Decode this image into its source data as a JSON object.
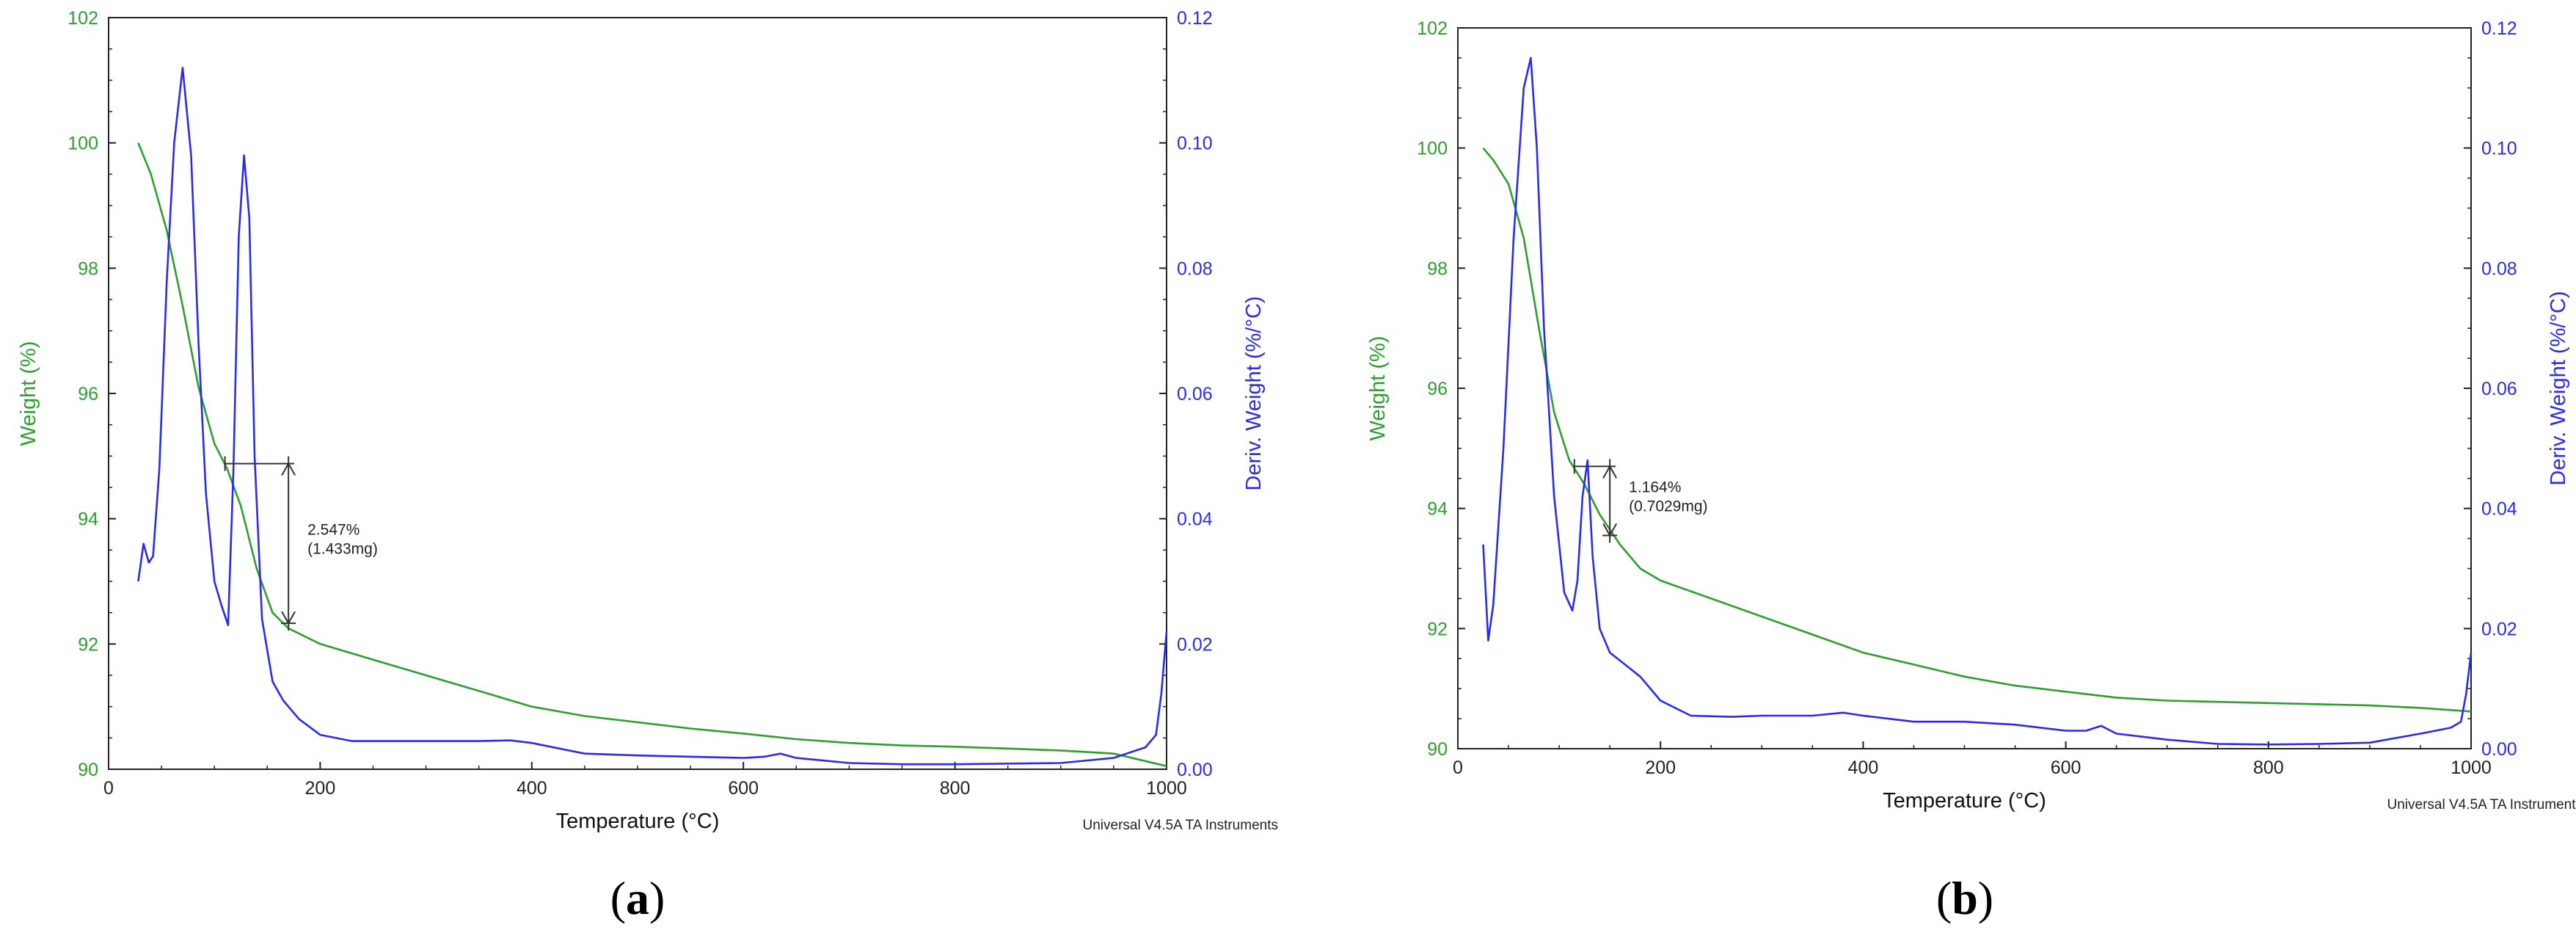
{
  "colors": {
    "weight": "#2e9e2e",
    "deriv": "#2a2af0",
    "axis": "#222222",
    "annotation": "#333333"
  },
  "chart_data": [
    {
      "type": "line",
      "panel_label": "a",
      "xlabel": "Temperature (°C)",
      "ylabel_left": "Weight (%)",
      "ylabel_right": "Deriv. Weight (%/°C)",
      "xlim": [
        0,
        1000
      ],
      "ylim_left": [
        90,
        102
      ],
      "ylim_right": [
        0,
        0.12
      ],
      "x_ticks": [
        "0",
        "200",
        "400",
        "600",
        "800",
        "1000"
      ],
      "y_left_ticks": [
        "90",
        "92",
        "94",
        "96",
        "98",
        "100",
        "102"
      ],
      "y_right_ticks": [
        "0.00",
        "0.02",
        "0.04",
        "0.06",
        "0.08",
        "0.10",
        "0.12"
      ],
      "grid": false,
      "credit": "Universal V4.5A TA Instruments",
      "annotation": {
        "line1": "2.547%",
        "line2": "(1.433mg)",
        "x_start": 110,
        "x_end": 170,
        "y_top": 94.88,
        "y_bottom": 92.33
      },
      "series": [
        {
          "axis": "left",
          "color_key": "weight",
          "x": [
            28,
            40,
            55,
            70,
            85,
            100,
            112,
            125,
            140,
            155,
            170,
            200,
            250,
            300,
            350,
            400,
            450,
            500,
            550,
            600,
            650,
            700,
            750,
            800,
            850,
            900,
            950,
            1000
          ],
          "y": [
            100.0,
            99.5,
            98.6,
            97.4,
            96.1,
            95.2,
            94.8,
            94.2,
            93.2,
            92.5,
            92.25,
            92.0,
            91.75,
            91.5,
            91.25,
            91.0,
            90.85,
            90.75,
            90.65,
            90.57,
            90.48,
            90.42,
            90.38,
            90.36,
            90.33,
            90.3,
            90.25,
            90.05
          ]
        },
        {
          "axis": "right",
          "color_key": "deriv",
          "x": [
            28,
            33,
            38,
            42,
            48,
            55,
            62,
            70,
            78,
            85,
            92,
            100,
            107,
            113,
            118,
            123,
            128,
            133,
            138,
            145,
            155,
            165,
            180,
            200,
            230,
            270,
            300,
            350,
            380,
            400,
            450,
            500,
            550,
            600,
            620,
            635,
            650,
            700,
            750,
            800,
            850,
            900,
            950,
            980,
            990,
            995,
            1000
          ],
          "y": [
            0.03,
            0.036,
            0.033,
            0.034,
            0.048,
            0.078,
            0.1,
            0.112,
            0.098,
            0.068,
            0.044,
            0.03,
            0.026,
            0.023,
            0.048,
            0.085,
            0.098,
            0.088,
            0.05,
            0.024,
            0.014,
            0.011,
            0.008,
            0.0055,
            0.0045,
            0.0045,
            0.0045,
            0.0045,
            0.0046,
            0.0042,
            0.0025,
            0.0022,
            0.002,
            0.0018,
            0.002,
            0.0025,
            0.0018,
            0.001,
            0.0008,
            0.0008,
            0.0009,
            0.001,
            0.0018,
            0.0035,
            0.0055,
            0.012,
            0.022
          ]
        }
      ]
    },
    {
      "type": "line",
      "panel_label": "b",
      "xlabel": "Temperature (°C)",
      "ylabel_left": "Weight (%)",
      "ylabel_right": "Deriv. Weight (%/°C)",
      "xlim": [
        0,
        1000
      ],
      "ylim_left": [
        90,
        102
      ],
      "ylim_right": [
        0,
        0.12
      ],
      "x_ticks": [
        "0",
        "200",
        "400",
        "600",
        "800",
        "1000"
      ],
      "y_left_ticks": [
        "90",
        "92",
        "94",
        "96",
        "98",
        "100",
        "102"
      ],
      "y_right_ticks": [
        "0.00",
        "0.02",
        "0.04",
        "0.06",
        "0.08",
        "0.10",
        "0.12"
      ],
      "grid": false,
      "credit": "Universal V4.5A TA Instruments",
      "annotation": {
        "line1": "1.164%",
        "line2": "(0.7029mg)",
        "x_start": 115,
        "x_end": 150,
        "y_top": 94.7,
        "y_bottom": 93.55
      },
      "series": [
        {
          "axis": "left",
          "color_key": "weight",
          "x": [
            25,
            35,
            50,
            65,
            80,
            95,
            110,
            125,
            140,
            160,
            180,
            200,
            250,
            300,
            350,
            400,
            450,
            500,
            550,
            600,
            650,
            700,
            750,
            800,
            850,
            900,
            950,
            1000
          ],
          "y": [
            100.0,
            99.8,
            99.4,
            98.5,
            97.0,
            95.6,
            94.8,
            94.4,
            93.9,
            93.4,
            93.0,
            92.8,
            92.5,
            92.2,
            91.9,
            91.6,
            91.4,
            91.2,
            91.05,
            90.95,
            90.85,
            90.8,
            90.78,
            90.76,
            90.74,
            90.72,
            90.68,
            90.62
          ]
        },
        {
          "axis": "right",
          "color_key": "deriv",
          "x": [
            25,
            30,
            35,
            45,
            55,
            65,
            72,
            78,
            85,
            95,
            105,
            113,
            118,
            123,
            128,
            133,
            140,
            150,
            165,
            180,
            200,
            230,
            270,
            300,
            350,
            380,
            400,
            450,
            500,
            550,
            600,
            620,
            635,
            650,
            700,
            750,
            800,
            850,
            900,
            950,
            980,
            990,
            995,
            1000
          ],
          "y": [
            0.034,
            0.018,
            0.024,
            0.05,
            0.085,
            0.11,
            0.115,
            0.1,
            0.07,
            0.042,
            0.026,
            0.023,
            0.028,
            0.042,
            0.048,
            0.032,
            0.02,
            0.016,
            0.014,
            0.012,
            0.008,
            0.0055,
            0.0053,
            0.0055,
            0.0055,
            0.006,
            0.0055,
            0.0045,
            0.0045,
            0.004,
            0.003,
            0.003,
            0.0038,
            0.0025,
            0.0015,
            0.0008,
            0.0007,
            0.0008,
            0.001,
            0.0025,
            0.0035,
            0.0045,
            0.009,
            0.016
          ]
        }
      ]
    }
  ]
}
